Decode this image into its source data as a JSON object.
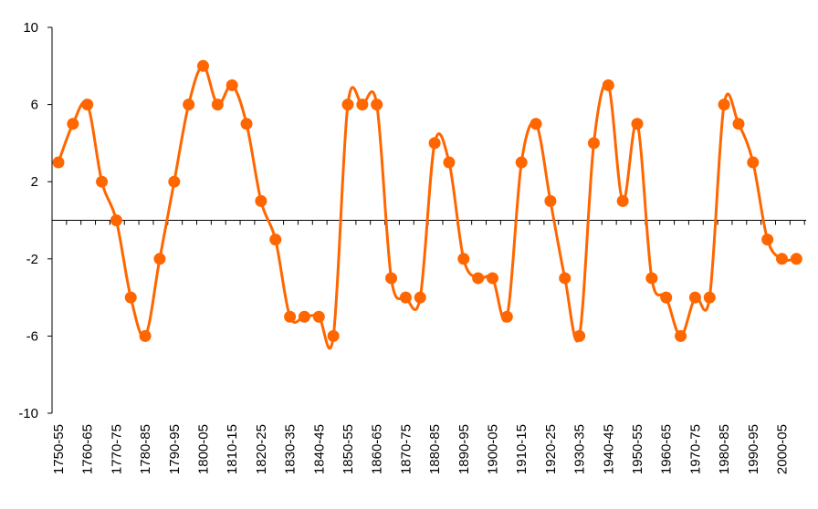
{
  "chart_data": {
    "type": "line",
    "title": "",
    "xlabel": "",
    "ylabel": "",
    "ylim": [
      -10,
      10
    ],
    "yticks": [
      10,
      6,
      2,
      -2,
      -6,
      -10
    ],
    "yticks_labels": [
      "10",
      "6",
      "2",
      "-2",
      "-6",
      "-10"
    ],
    "categories": [
      "1750-55",
      "1755-60",
      "1760-65",
      "1765-70",
      "1770-75",
      "1775-80",
      "1780-85",
      "1785-90",
      "1790-95",
      "1795-00",
      "1800-05",
      "1805-10",
      "1810-15",
      "1815-20",
      "1820-25",
      "1825-30",
      "1830-35",
      "1835-40",
      "1840-45",
      "1845-50",
      "1850-55",
      "1855-60",
      "1860-65",
      "1865-70",
      "1870-75",
      "1875-80",
      "1880-85",
      "1885-90",
      "1890-95",
      "1895-00",
      "1900-05",
      "1905-10",
      "1910-15",
      "1915-20",
      "1920-25",
      "1925-30",
      "1930-35",
      "1935-40",
      "1940-45",
      "1945-50",
      "1950-55",
      "1955-60",
      "1960-65",
      "1965-70",
      "1970-75",
      "1975-80",
      "1980-85",
      "1985-90",
      "1990-95",
      "1995-00",
      "2000-05",
      "2005-10"
    ],
    "x_tick_labels": [
      "1750-55",
      "1760-65",
      "1770-75",
      "1780-85",
      "1790-95",
      "1800-05",
      "1810-15",
      "1820-25",
      "1830-35",
      "1840-45",
      "1850-55",
      "1860-65",
      "1870-75",
      "1880-85",
      "1890-95",
      "1900-05",
      "1910-15",
      "1920-25",
      "1930-35",
      "1940-45",
      "1950-55",
      "1960-65",
      "1970-75",
      "1980-85",
      "1990-95",
      "2000-05"
    ],
    "series": [
      {
        "color": "#ff6600",
        "smooth": true,
        "marker": "circle",
        "values": [
          3,
          5,
          6,
          2,
          0,
          -4,
          -6,
          -2,
          2,
          6,
          8,
          6,
          7,
          5,
          1,
          -1,
          -5,
          -5,
          -5,
          -6,
          6,
          6,
          6,
          -3,
          -4,
          -4,
          4,
          3,
          -2,
          -3,
          -3,
          -5,
          3,
          5,
          1,
          -3,
          -6,
          4,
          7,
          1,
          5,
          -3,
          -4,
          -6,
          -4,
          -4,
          6,
          5,
          3,
          -1,
          -2,
          -2
        ]
      }
    ],
    "grid": false,
    "legend": "none"
  }
}
